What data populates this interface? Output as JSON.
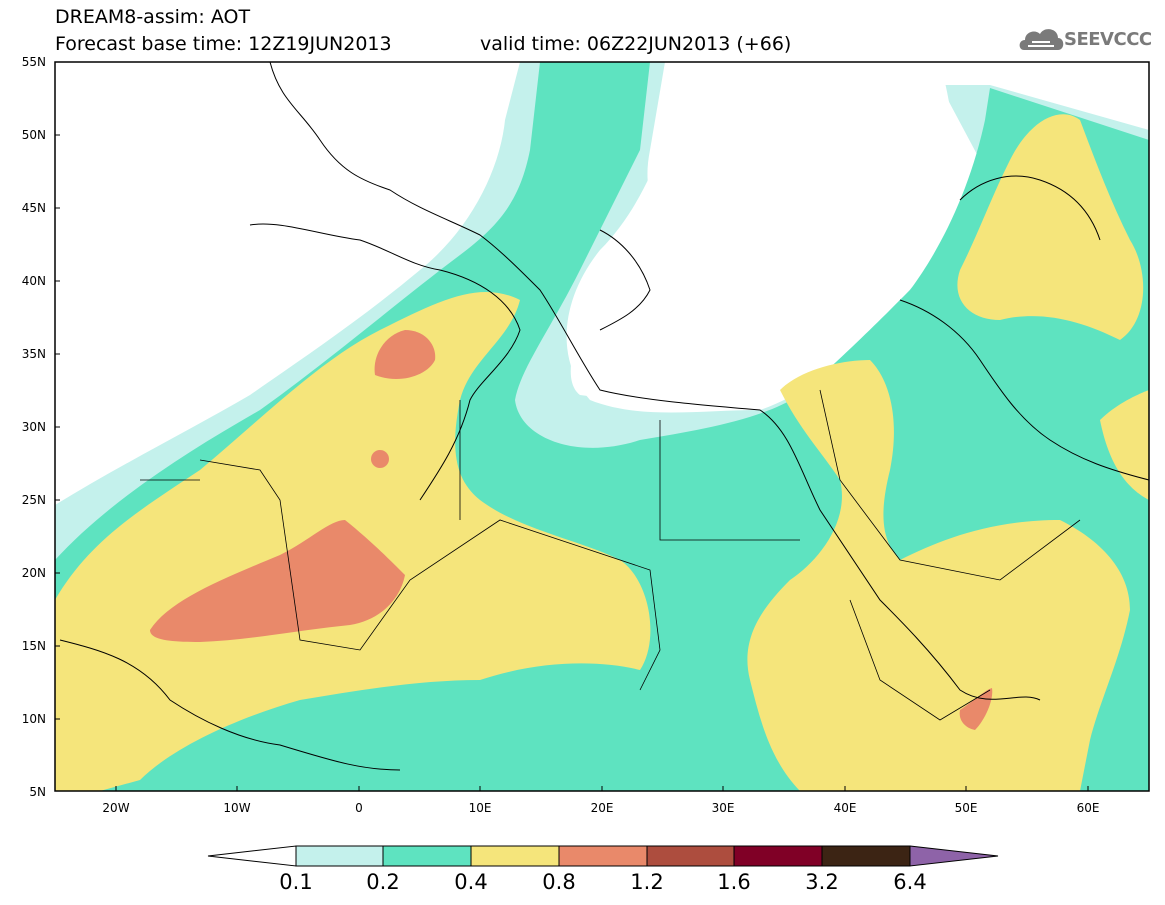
{
  "header": {
    "title_line1": "DREAM8-assim: AOT",
    "title_line2": "Forecast base time: 12Z19JUN2013",
    "valid_time": "valid time: 06Z22JUN2013 (+66)",
    "logo_text": "SEEVCCC"
  },
  "map": {
    "lon_range": [
      -25,
      65
    ],
    "lat_range": [
      5,
      55
    ],
    "lat_labels": [
      "55N",
      "50N",
      "45N",
      "40N",
      "35N",
      "30N",
      "25N",
      "20N",
      "15N",
      "10N",
      "5N"
    ],
    "lon_labels": [
      "20W",
      "10W",
      "0",
      "10E",
      "20E",
      "30E",
      "40E",
      "50E",
      "60E"
    ],
    "variable": "Aerosol Optical Thickness",
    "projection": "lat-lon"
  },
  "colorbar": {
    "labels": [
      "0.1",
      "0.2",
      "0.4",
      "0.8",
      "1.2",
      "1.6",
      "3.2",
      "6.4"
    ],
    "colors": [
      "#ffffff",
      "#c4f1ec",
      "#5ee3c0",
      "#f5e57b",
      "#e9896a",
      "#ad4d3e",
      "#800026",
      "#3c2414",
      "#8e63a8"
    ]
  }
}
